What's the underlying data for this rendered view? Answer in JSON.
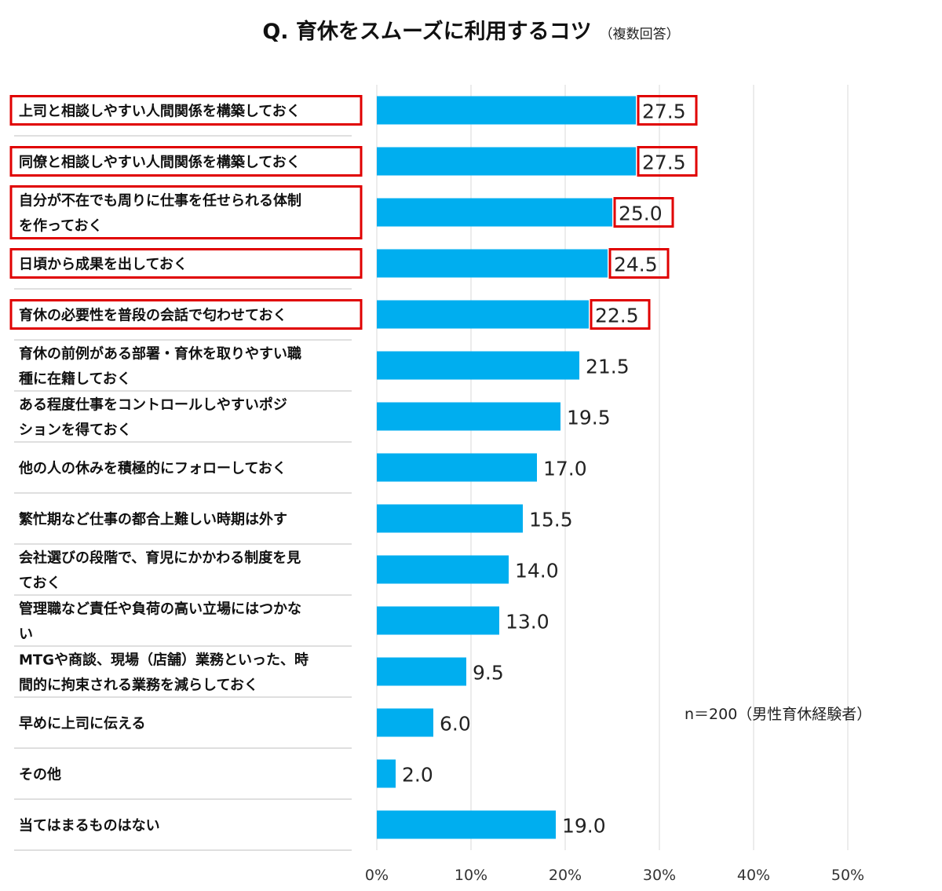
{
  "title": "Q. 育休をスムーズに利用するコツ",
  "subtitle": "（複数回答）",
  "note": "n＝200（男性育休経験者）",
  "colors": {
    "bar": "#00AEEF",
    "highlight": "#E00000",
    "grid": "#d9d9d9",
    "separator": "#bfbfbf"
  },
  "chart_data": {
    "type": "bar",
    "orientation": "horizontal",
    "categories": [
      [
        "上司と相談しやすい人間関係を構築しておく"
      ],
      [
        "同僚と相談しやすい人間関係を構築しておく"
      ],
      [
        "自分が不在でも周りに仕事を任せられる体制",
        "を作っておく"
      ],
      [
        "日頃から成果を出しておく"
      ],
      [
        "育休の必要性を普段の会話で匂わせておく"
      ],
      [
        "育休の前例がある部署・育休を取りやすい職",
        "種に在籍しておく"
      ],
      [
        "ある程度仕事をコントロールしやすいポジ",
        "ションを得ておく"
      ],
      [
        "他の人の休みを積極的にフォローしておく"
      ],
      [
        "繁忙期など仕事の都合上難しい時期は外す"
      ],
      [
        "会社選びの段階で、育児にかかわる制度を見",
        "ておく"
      ],
      [
        "管理職など責任や負荷の高い立場にはつかな",
        "い"
      ],
      [
        "MTGや商談、現場（店舗）業務といった、時",
        "間的に拘束される業務を減らしておく"
      ],
      [
        "早めに上司に伝える"
      ],
      [
        "その他"
      ],
      [
        "当てはまるものはない"
      ]
    ],
    "values": [
      27.5,
      27.5,
      25.0,
      24.5,
      22.5,
      21.5,
      19.5,
      17.0,
      15.5,
      14.0,
      13.0,
      9.5,
      6.0,
      2.0,
      19.0
    ],
    "value_labels": [
      "27.5",
      "27.5",
      "25.0",
      "24.5",
      "22.5",
      "21.5",
      "19.5",
      "17.0",
      "15.5",
      "14.0",
      "13.0",
      "9.5",
      "6.0",
      "2.0",
      "19.0"
    ],
    "highlighted": [
      true,
      true,
      true,
      true,
      true,
      false,
      false,
      false,
      false,
      false,
      false,
      false,
      false,
      false,
      false
    ],
    "x_ticks": [
      0,
      10,
      20,
      30,
      40,
      50
    ],
    "x_tick_labels": [
      "0%",
      "10%",
      "20%",
      "30%",
      "40%",
      "50%"
    ],
    "xlim": [
      0,
      50
    ],
    "unit": "%",
    "grid": true
  }
}
